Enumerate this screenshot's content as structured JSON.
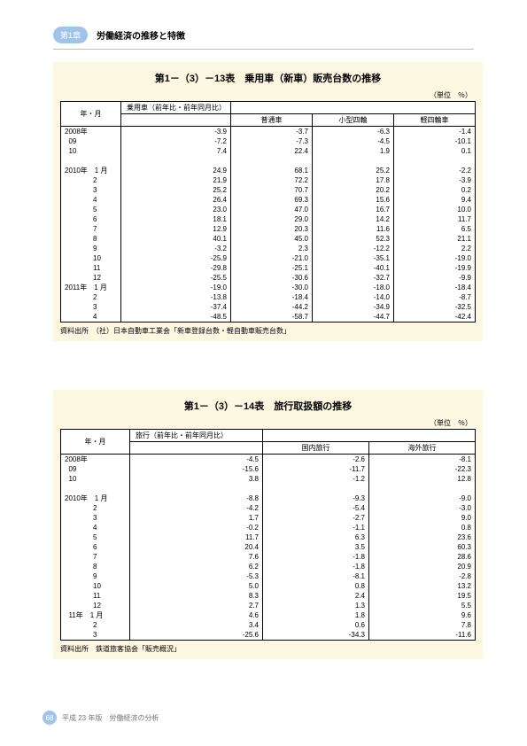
{
  "header": {
    "chapter": "第1章",
    "title": "労働経済の推移と特徴"
  },
  "block1": {
    "title": "第1－（3）－13表　乗用車（新車）販売台数の推移",
    "unit": "（単位　％）",
    "colhead_period": "年・月",
    "colhead_group": "乗用車（前年比・前年同月比）",
    "cols": [
      "普通車",
      "小型四輪",
      "軽四輪車"
    ],
    "rows": [
      {
        "p": "2008年",
        "v": [
          "-3.9",
          "-3.7",
          "-6.3",
          "-1.4"
        ]
      },
      {
        "p": "  09",
        "v": [
          "-7.2",
          "-7.3",
          "-4.5",
          "-10.1"
        ]
      },
      {
        "p": "  10",
        "v": [
          "7.4",
          "22.4",
          "1.9",
          "0.1"
        ]
      },
      {
        "p": "",
        "v": [
          "",
          "",
          "",
          ""
        ]
      },
      {
        "p": "2010年　1 月",
        "v": [
          "24.9",
          "68.1",
          "25.2",
          "-2.2"
        ]
      },
      {
        "p": "　　　　2",
        "v": [
          "21.9",
          "72.2",
          "17.8",
          "-3.9"
        ]
      },
      {
        "p": "　　　　3",
        "v": [
          "25.2",
          "70.7",
          "20.2",
          "0.2"
        ]
      },
      {
        "p": "　　　　4",
        "v": [
          "26.4",
          "69.3",
          "15.6",
          "9.4"
        ]
      },
      {
        "p": "　　　　5",
        "v": [
          "23.0",
          "47.0",
          "16.7",
          "10.0"
        ]
      },
      {
        "p": "　　　　6",
        "v": [
          "18.1",
          "29.0",
          "14.2",
          "11.7"
        ]
      },
      {
        "p": "　　　　7",
        "v": [
          "12.9",
          "20.3",
          "11.6",
          "6.5"
        ]
      },
      {
        "p": "　　　　8",
        "v": [
          "40.1",
          "45.0",
          "52.3",
          "21.1"
        ]
      },
      {
        "p": "　　　　9",
        "v": [
          "-3.2",
          "2.3",
          "-12.2",
          "2.2"
        ]
      },
      {
        "p": "　　　　10",
        "v": [
          "-25.9",
          "-21.0",
          "-35.1",
          "-19.0"
        ]
      },
      {
        "p": "　　　　11",
        "v": [
          "-29.8",
          "-25.1",
          "-40.1",
          "-19.9"
        ]
      },
      {
        "p": "　　　　12",
        "v": [
          "-25.5",
          "-30.6",
          "-32.7",
          "-9.9"
        ]
      },
      {
        "p": "2011年　1 月",
        "v": [
          "-19.0",
          "-30.0",
          "-18.0",
          "-18.4"
        ]
      },
      {
        "p": "　　　　2",
        "v": [
          "-13.8",
          "-18.4",
          "-14.0",
          "-8.7"
        ]
      },
      {
        "p": "　　　　3",
        "v": [
          "-37.4",
          "-44.2",
          "-34.9",
          "-32.5"
        ]
      },
      {
        "p": "　　　　4",
        "v": [
          "-48.5",
          "-58.7",
          "-44.7",
          "-42.4"
        ]
      }
    ],
    "source": "資料出所　（社）日本自動車工業会「新車登録台数・軽自動車販売台数」"
  },
  "block2": {
    "title": "第1－（3）－14表　旅行取扱額の推移",
    "unit": "（単位　％）",
    "colhead_period": "年・月",
    "colhead_group": "旅行（前年比・前年同月比）",
    "cols": [
      "国内旅行",
      "海外旅行"
    ],
    "rows": [
      {
        "p": "2008年",
        "v": [
          "-4.5",
          "-2.6",
          "-8.1"
        ]
      },
      {
        "p": "  09",
        "v": [
          "-15.6",
          "-11.7",
          "-22.3"
        ]
      },
      {
        "p": "  10",
        "v": [
          "3.8",
          "-1.2",
          "12.8"
        ]
      },
      {
        "p": "",
        "v": [
          "",
          "",
          ""
        ]
      },
      {
        "p": "2010年　1 月",
        "v": [
          "-8.8",
          "-9.3",
          "-9.0"
        ]
      },
      {
        "p": "　　　　2",
        "v": [
          "-4.2",
          "-5.4",
          "-3.0"
        ]
      },
      {
        "p": "　　　　3",
        "v": [
          "1.7",
          "-2.7",
          "9.0"
        ]
      },
      {
        "p": "　　　　4",
        "v": [
          "-0.2",
          "-1.1",
          "0.8"
        ]
      },
      {
        "p": "　　　　5",
        "v": [
          "11.7",
          "6.3",
          "23.6"
        ]
      },
      {
        "p": "　　　　6",
        "v": [
          "20.4",
          "3.5",
          "60.3"
        ]
      },
      {
        "p": "　　　　7",
        "v": [
          "7.6",
          "-1.8",
          "28.6"
        ]
      },
      {
        "p": "　　　　8",
        "v": [
          "6.2",
          "-1.8",
          "20.9"
        ]
      },
      {
        "p": "　　　　9",
        "v": [
          "-5.3",
          "-8.1",
          "-2.8"
        ]
      },
      {
        "p": "　　　　10",
        "v": [
          "5.0",
          "0.8",
          "13.2"
        ]
      },
      {
        "p": "　　　　11",
        "v": [
          "8.3",
          "2.4",
          "19.5"
        ]
      },
      {
        "p": "　　　　12",
        "v": [
          "2.7",
          "1.3",
          "5.5"
        ]
      },
      {
        "p": "  11年　1 月",
        "v": [
          "4.6",
          "1.8",
          "9.6"
        ]
      },
      {
        "p": "　　　　2",
        "v": [
          "3.4",
          "0.6",
          "7.8"
        ]
      },
      {
        "p": "　　　　3",
        "v": [
          "-25.6",
          "-34.3",
          "-11.6"
        ]
      }
    ],
    "source": "資料出所　鉄道旅客協会「販売概況」"
  },
  "footer": {
    "page": "68",
    "text": "平成 23 年版　労働経済の分析"
  }
}
